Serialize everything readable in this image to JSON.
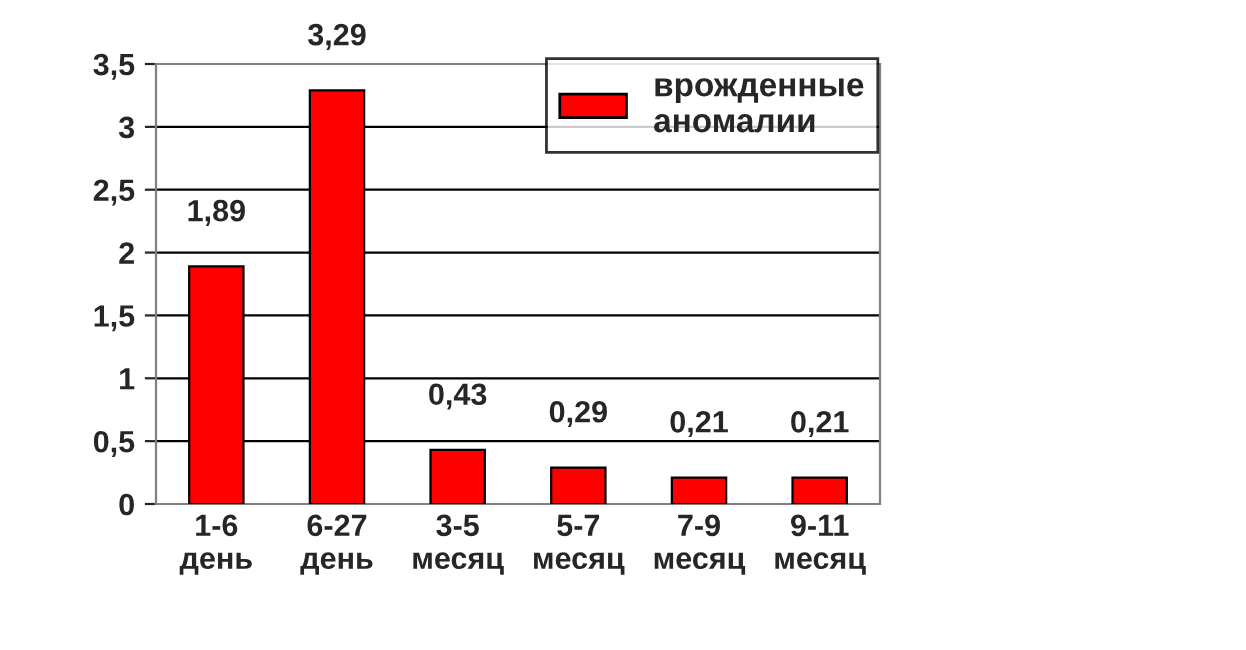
{
  "chart_data": {
    "type": "bar",
    "categories": [
      "1-6\nдень",
      "6-27\nдень",
      "3-5\nмесяц",
      "5-7\nмесяц",
      "7-9\nмесяц",
      "9-11\nмесяц"
    ],
    "series": [
      {
        "name": "врожденные\nаномалии",
        "color": "#ff0000",
        "values": [
          1.89,
          3.29,
          0.43,
          0.29,
          0.21,
          0.21
        ],
        "value_labels": [
          "1,89",
          "3,29",
          "0,43",
          "0,29",
          "0,21",
          "0,21"
        ]
      }
    ],
    "ylim": [
      0,
      3.5
    ],
    "yticks": [
      0,
      {
        "value": 0.5,
        "label": "0,5"
      },
      1,
      {
        "value": 1.5,
        "label": "1,5"
      },
      2,
      {
        "value": 2.5,
        "label": "2,5"
      },
      3,
      {
        "value": 3.5,
        "label": "3,5"
      }
    ],
    "grid": "y",
    "legend": "top right"
  }
}
